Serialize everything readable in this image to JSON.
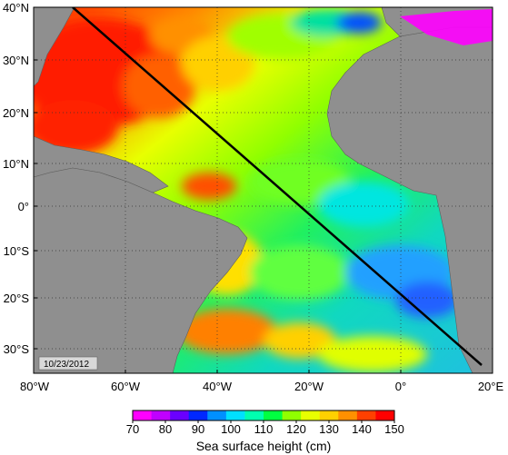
{
  "map": {
    "date_label": "10/23/2012",
    "lon_labels": [
      "80°W",
      "60°W",
      "40°W",
      "20°W",
      "0°",
      "20°E"
    ],
    "lat_labels": [
      "40°N",
      "30°N",
      "20°N",
      "10°N",
      "0°",
      "10°S",
      "20°S",
      "30°S"
    ],
    "colors": {
      "land": "#8f8f8f",
      "grid": "#333333",
      "track": "#000000"
    }
  },
  "colorbar": {
    "title": "Sea surface height (cm)",
    "ticks": [
      "70",
      "80",
      "90",
      "100",
      "110",
      "120",
      "130",
      "140",
      "150"
    ],
    "colors": [
      "#ff00ff",
      "#c000ff",
      "#6a00ff",
      "#0028ff",
      "#0090ff",
      "#00e0ff",
      "#00ffb0",
      "#00ff40",
      "#90ff00",
      "#e8ff00",
      "#ffd000",
      "#ff9000",
      "#ff4000",
      "#ff0000"
    ]
  }
}
